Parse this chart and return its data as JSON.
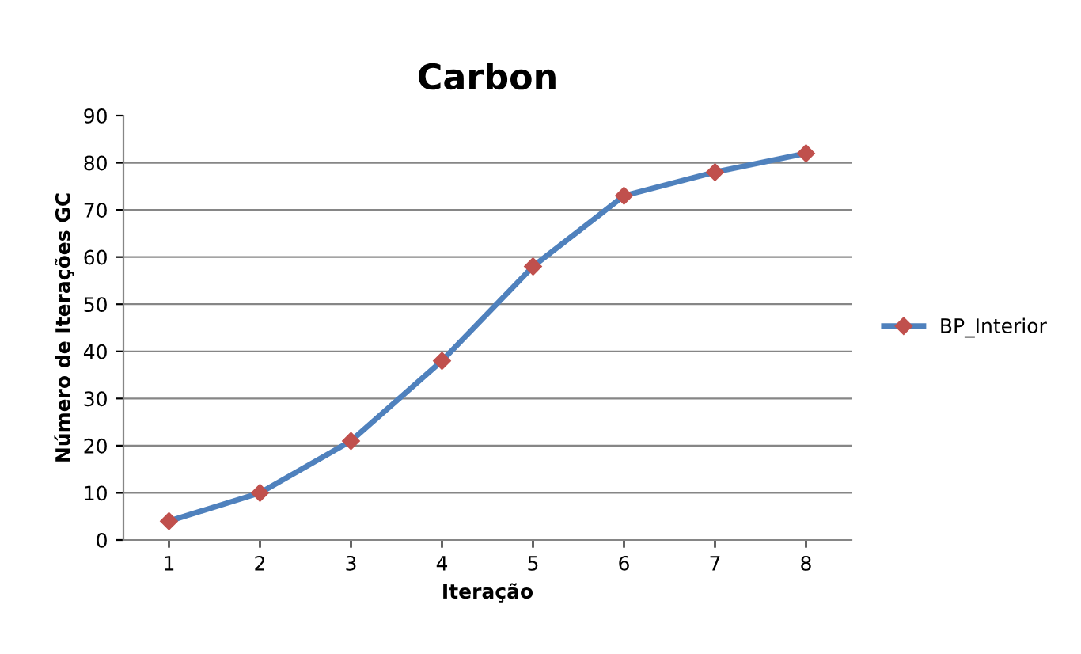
{
  "chart_data": {
    "type": "line",
    "title": "Carbon",
    "xlabel": "Iteração",
    "ylabel": "Número de Iterações GC",
    "categories": [
      "1",
      "2",
      "3",
      "4",
      "5",
      "6",
      "7",
      "8"
    ],
    "series": [
      {
        "name": "BP_Interior",
        "color": "#4f81bd",
        "values": [
          4,
          10,
          21,
          38,
          58,
          73,
          78,
          82
        ]
      }
    ],
    "ylim": [
      0,
      90
    ],
    "yticks": [
      0,
      10,
      20,
      30,
      40,
      50,
      60,
      70,
      80,
      90
    ],
    "grid": "y",
    "legend": "right",
    "marker": "diamond",
    "line_style": "solid"
  }
}
